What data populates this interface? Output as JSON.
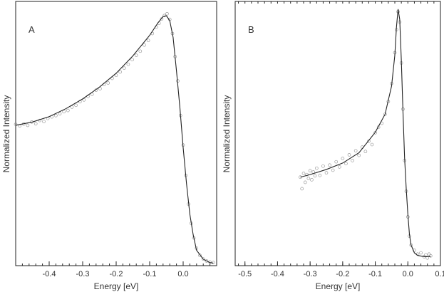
{
  "chart_data": [
    {
      "panel_label": "A",
      "type": "scatter",
      "xlabel": "Energy [eV]",
      "ylabel": "Normalized Intensity",
      "xlim": [
        -0.5,
        0.1
      ],
      "ylim": [
        0,
        1.03
      ],
      "x_ticks": [
        -0.4,
        -0.3,
        -0.2,
        -0.1,
        0.0
      ],
      "x_tick_labels": [
        "-0.4",
        "-0.3",
        "-0.2",
        "-0.1",
        "0.0"
      ],
      "series": [
        {
          "kind": "fit-line",
          "points": [
            [
              -0.5,
              0.547
            ],
            [
              -0.45,
              0.56
            ],
            [
              -0.4,
              0.581
            ],
            [
              -0.35,
              0.612
            ],
            [
              -0.3,
              0.65
            ],
            [
              -0.25,
              0.696
            ],
            [
              -0.2,
              0.75
            ],
            [
              -0.15,
              0.818
            ],
            [
              -0.1,
              0.898
            ],
            [
              -0.075,
              0.947
            ],
            [
              -0.06,
              0.971
            ],
            [
              -0.05,
              0.974
            ],
            [
              -0.04,
              0.955
            ],
            [
              -0.03,
              0.89
            ],
            [
              -0.02,
              0.76
            ],
            [
              -0.01,
              0.62
            ],
            [
              0.0,
              0.46
            ],
            [
              0.01,
              0.32
            ],
            [
              0.02,
              0.2
            ],
            [
              0.03,
              0.12
            ],
            [
              0.04,
              0.06
            ],
            [
              0.06,
              0.025
            ],
            [
              0.08,
              0.012
            ],
            [
              0.09,
              0.01
            ]
          ]
        },
        {
          "kind": "data-points",
          "points": [
            [
              -0.5,
              0.551
            ],
            [
              -0.488,
              0.545
            ],
            [
              -0.476,
              0.552
            ],
            [
              -0.464,
              0.547
            ],
            [
              -0.452,
              0.56
            ],
            [
              -0.44,
              0.553
            ],
            [
              -0.428,
              0.566
            ],
            [
              -0.416,
              0.562
            ],
            [
              -0.404,
              0.574
            ],
            [
              -0.392,
              0.58
            ],
            [
              -0.38,
              0.585
            ],
            [
              -0.368,
              0.592
            ],
            [
              -0.356,
              0.6
            ],
            [
              -0.344,
              0.605
            ],
            [
              -0.332,
              0.618
            ],
            [
              -0.32,
              0.625
            ],
            [
              -0.308,
              0.639
            ],
            [
              -0.296,
              0.646
            ],
            [
              -0.284,
              0.66
            ],
            [
              -0.272,
              0.668
            ],
            [
              -0.26,
              0.684
            ],
            [
              -0.248,
              0.69
            ],
            [
              -0.236,
              0.706
            ],
            [
              -0.224,
              0.712
            ],
            [
              -0.212,
              0.73
            ],
            [
              -0.2,
              0.742
            ],
            [
              -0.188,
              0.755
            ],
            [
              -0.176,
              0.77
            ],
            [
              -0.164,
              0.785
            ],
            [
              -0.152,
              0.803
            ],
            [
              -0.14,
              0.82
            ],
            [
              -0.128,
              0.836
            ],
            [
              -0.116,
              0.86
            ],
            [
              -0.104,
              0.878
            ],
            [
              -0.092,
              0.905
            ],
            [
              -0.08,
              0.93
            ],
            [
              -0.072,
              0.945
            ],
            [
              -0.064,
              0.962
            ],
            [
              -0.056,
              0.975
            ],
            [
              -0.048,
              0.982
            ],
            [
              -0.04,
              0.96
            ],
            [
              -0.032,
              0.905
            ],
            [
              -0.024,
              0.815
            ],
            [
              -0.016,
              0.72
            ],
            [
              -0.008,
              0.585
            ],
            [
              0.0,
              0.47
            ],
            [
              0.008,
              0.352
            ],
            [
              0.016,
              0.24
            ],
            [
              0.024,
              0.165
            ],
            [
              0.032,
              0.108
            ],
            [
              0.04,
              0.068
            ],
            [
              0.05,
              0.04
            ],
            [
              0.06,
              0.026
            ],
            [
              0.07,
              0.018
            ],
            [
              0.08,
              0.014
            ],
            [
              0.09,
              0.012
            ]
          ]
        }
      ]
    },
    {
      "panel_label": "B",
      "type": "scatter",
      "xlabel": "Energy [eV]",
      "ylabel": "Normalized Intensity",
      "xlim": [
        -0.53,
        0.1
      ],
      "ylim": [
        0,
        1.03
      ],
      "x_ticks": [
        -0.5,
        -0.4,
        -0.3,
        -0.2,
        -0.1,
        0.0,
        0.1
      ],
      "x_tick_labels": [
        "-0.5",
        "-0.4",
        "-0.3",
        "-0.2",
        "-0.1",
        "0.0",
        "0.1"
      ],
      "series": [
        {
          "kind": "fit-line",
          "points": [
            [
              -0.33,
              0.345
            ],
            [
              -0.3,
              0.355
            ],
            [
              -0.25,
              0.375
            ],
            [
              -0.2,
              0.4
            ],
            [
              -0.15,
              0.44
            ],
            [
              -0.1,
              0.52
            ],
            [
              -0.07,
              0.59
            ],
            [
              -0.05,
              0.7
            ],
            [
              -0.04,
              0.82
            ],
            [
              -0.035,
              0.93
            ],
            [
              -0.03,
              1.0
            ],
            [
              -0.025,
              0.96
            ],
            [
              -0.02,
              0.8
            ],
            [
              -0.015,
              0.6
            ],
            [
              -0.01,
              0.42
            ],
            [
              -0.005,
              0.3
            ],
            [
              0.0,
              0.2
            ],
            [
              0.005,
              0.12
            ],
            [
              0.01,
              0.08
            ],
            [
              0.02,
              0.05
            ],
            [
              0.03,
              0.04
            ],
            [
              0.05,
              0.035
            ],
            [
              0.07,
              0.035
            ]
          ]
        },
        {
          "kind": "data-points",
          "points": [
            [
              -0.33,
              0.345
            ],
            [
              -0.325,
              0.3
            ],
            [
              -0.32,
              0.36
            ],
            [
              -0.315,
              0.325
            ],
            [
              -0.31,
              0.355
            ],
            [
              -0.305,
              0.34
            ],
            [
              -0.3,
              0.37
            ],
            [
              -0.295,
              0.335
            ],
            [
              -0.29,
              0.365
            ],
            [
              -0.285,
              0.35
            ],
            [
              -0.28,
              0.38
            ],
            [
              -0.27,
              0.352
            ],
            [
              -0.26,
              0.388
            ],
            [
              -0.25,
              0.362
            ],
            [
              -0.24,
              0.392
            ],
            [
              -0.23,
              0.372
            ],
            [
              -0.22,
              0.405
            ],
            [
              -0.21,
              0.385
            ],
            [
              -0.2,
              0.418
            ],
            [
              -0.19,
              0.398
            ],
            [
              -0.18,
              0.432
            ],
            [
              -0.17,
              0.41
            ],
            [
              -0.16,
              0.448
            ],
            [
              -0.15,
              0.43
            ],
            [
              -0.14,
              0.462
            ],
            [
              -0.13,
              0.445
            ],
            [
              -0.12,
              0.485
            ],
            [
              -0.11,
              0.472
            ],
            [
              -0.1,
              0.518
            ],
            [
              -0.09,
              0.54
            ],
            [
              -0.08,
              0.555
            ],
            [
              -0.07,
              0.59
            ],
            [
              -0.06,
              0.64
            ],
            [
              -0.05,
              0.71
            ],
            [
              -0.04,
              0.83
            ],
            [
              -0.035,
              0.92
            ],
            [
              -0.03,
              0.99
            ],
            [
              -0.025,
              0.95
            ],
            [
              -0.02,
              0.79
            ],
            [
              -0.015,
              0.61
            ],
            [
              -0.01,
              0.41
            ],
            [
              -0.005,
              0.29
            ],
            [
              0.0,
              0.19
            ],
            [
              0.005,
              0.115
            ],
            [
              0.01,
              0.08
            ],
            [
              0.02,
              0.06
            ],
            [
              0.03,
              0.045
            ],
            [
              0.04,
              0.05
            ],
            [
              0.05,
              0.035
            ],
            [
              0.055,
              0.042
            ],
            [
              0.06,
              0.03
            ],
            [
              0.065,
              0.045
            ],
            [
              0.07,
              0.038
            ]
          ]
        }
      ]
    }
  ]
}
